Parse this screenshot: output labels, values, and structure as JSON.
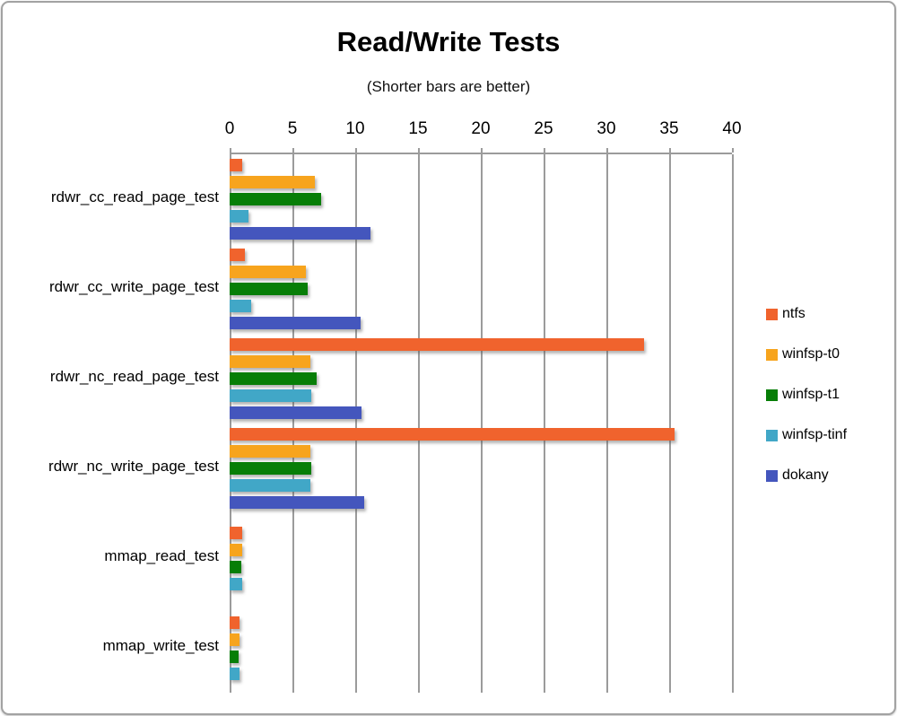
{
  "title": "Read/Write Tests",
  "subtitle": "(Shorter bars are better)",
  "chart_data": {
    "type": "bar",
    "orientation": "horizontal",
    "title": "Read/Write Tests",
    "subtitle": "(Shorter bars are better)",
    "categories": [
      "rdwr_cc_read_page_test",
      "rdwr_cc_write_page_test",
      "rdwr_nc_read_page_test",
      "rdwr_nc_write_page_test",
      "mmap_read_test",
      "mmap_write_test"
    ],
    "series": [
      {
        "name": "ntfs",
        "color": "#F0632D",
        "values": [
          1.0,
          1.2,
          33.0,
          35.4,
          1.0,
          0.8
        ]
      },
      {
        "name": "winfsp-t0",
        "color": "#F7A41D",
        "values": [
          6.8,
          6.1,
          6.4,
          6.4,
          1.0,
          0.8
        ]
      },
      {
        "name": "winfsp-t1",
        "color": "#077E07",
        "values": [
          7.3,
          6.2,
          6.9,
          6.5,
          0.9,
          0.7
        ]
      },
      {
        "name": "winfsp-tinf",
        "color": "#41A7C7",
        "values": [
          1.5,
          1.7,
          6.5,
          6.4,
          1.0,
          0.8
        ]
      },
      {
        "name": "dokany",
        "color": "#4456BD",
        "values": [
          11.2,
          10.4,
          10.5,
          10.7,
          0,
          0
        ]
      }
    ],
    "xlim": [
      0,
      40
    ],
    "xticks": [
      0,
      5,
      10,
      15,
      20,
      25,
      30,
      35,
      40
    ],
    "grid": "vertical-gridlines",
    "legend_position": "right",
    "axis_color": "#9B9B9B",
    "grid_color": "#9B9B9B"
  }
}
